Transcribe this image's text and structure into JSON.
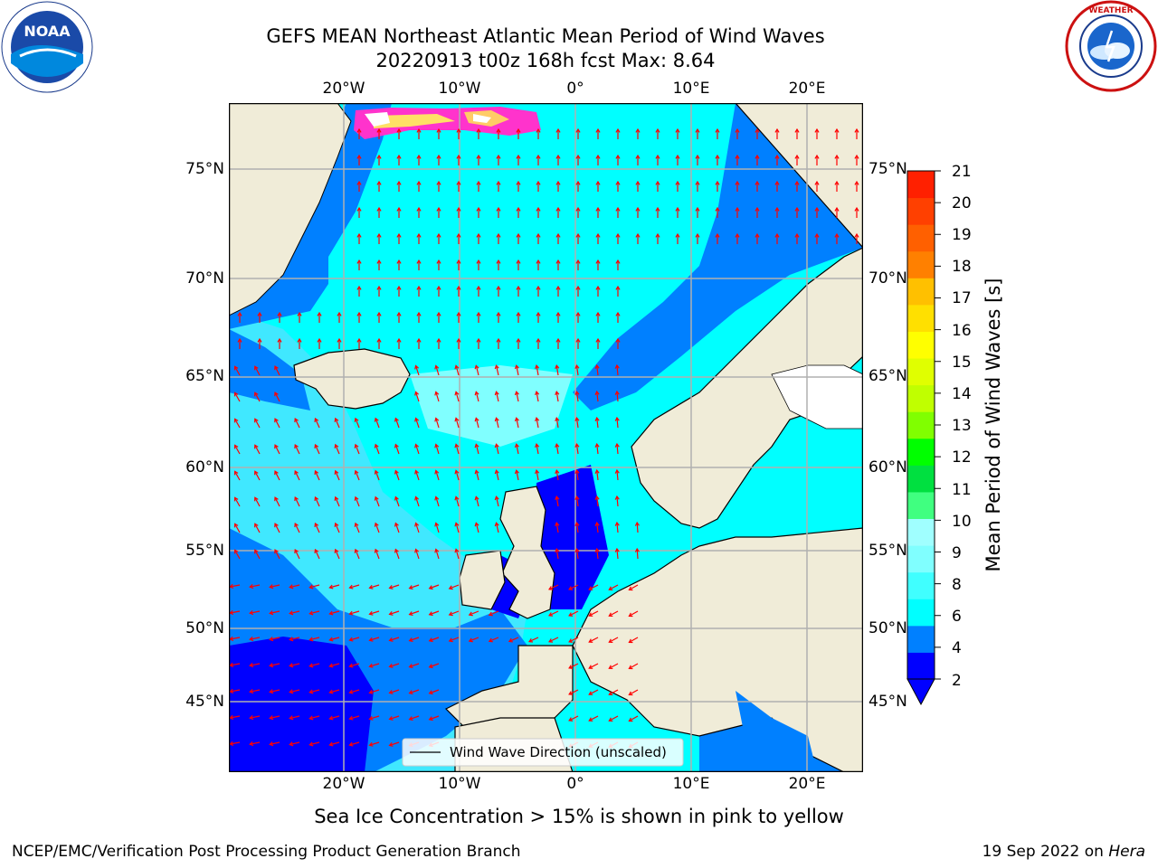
{
  "header": {
    "title_line1": "GEFS MEAN Northeast Atlantic Mean Period of Wind Waves",
    "title_line2": "20220913 t00z 168h fcst   Max: 8.64",
    "noaa_logo_text": "NOAA",
    "noaa_ring_text": "NATIONAL OCEANIC AND ATMOSPHERIC ADMINISTRATION · U.S. DEPARTMENT OF COMMERCE",
    "nws_ring_text": "NATIONAL WEATHER SERVICE"
  },
  "map": {
    "lon_labels": [
      "20°W",
      "10°W",
      "0°",
      "10°E",
      "20°E"
    ],
    "lat_labels": [
      "75°N",
      "70°N",
      "65°N",
      "60°N",
      "55°N",
      "50°N",
      "45°N"
    ],
    "legend_text": "Wind Wave Direction (unscaled)",
    "colors": {
      "ocean_mid": "#00ffff",
      "ocean_low": "#0080ff",
      "ocean_lowest": "#0000ff",
      "ocean_high": "#80ffff",
      "land": "#f0ecd8",
      "arrow": "#ff0000",
      "grid": "#b0b0b0"
    }
  },
  "colorbar": {
    "label": "Mean Period of Wind Waves [s]",
    "ticks": [
      "21",
      "20",
      "19",
      "18",
      "17",
      "16",
      "15",
      "14",
      "13",
      "12",
      "11",
      "10",
      "9",
      "8",
      "6",
      "4",
      "2"
    ],
    "colors": [
      "#0000ff",
      "#0080ff",
      "#00ffff",
      "#40ffff",
      "#80ffff",
      "#a0ffff",
      "#40ff80",
      "#00e040",
      "#00ff00",
      "#80ff00",
      "#c0ff00",
      "#e0ff00",
      "#ffff00",
      "#ffe000",
      "#ffc000",
      "#ff8000",
      "#ff6000",
      "#ff4000",
      "#ff2000"
    ]
  },
  "footer": {
    "ice_note": "Sea Ice Concentration > 15% is shown in pink to yellow",
    "credit": "NCEP/EMC/Verification Post Processing Product Generation Branch",
    "date_prefix": "19 Sep 2022 on ",
    "machine": "Hera"
  }
}
